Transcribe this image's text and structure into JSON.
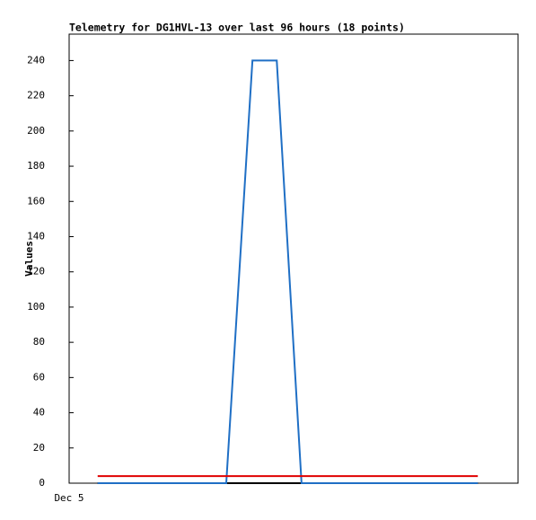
{
  "chart_data": {
    "type": "line",
    "title": "Telemetry for DG1HVL-13 over last 96 hours (18 points)",
    "y_label": "Values",
    "x": [
      6.1,
      33.6,
      39.2,
      44.4,
      49.7,
      87.4
    ],
    "xlim": [
      0,
      96
    ],
    "xticks": [
      {
        "value": 0,
        "label": "Dec 5"
      }
    ],
    "ylim": [
      0,
      255
    ],
    "yticks": [
      0,
      20,
      40,
      60,
      80,
      100,
      120,
      140,
      160,
      180,
      200,
      220,
      240
    ],
    "series": [
      {
        "color": "#000000",
        "values": [
          0,
          0,
          0,
          0,
          0,
          0
        ]
      },
      {
        "color": "#1f6fc5",
        "values": [
          0,
          0,
          240,
          240,
          0,
          0
        ]
      },
      {
        "color": "#e00000",
        "values": [
          4,
          4,
          4,
          4,
          4,
          4
        ]
      }
    ]
  }
}
